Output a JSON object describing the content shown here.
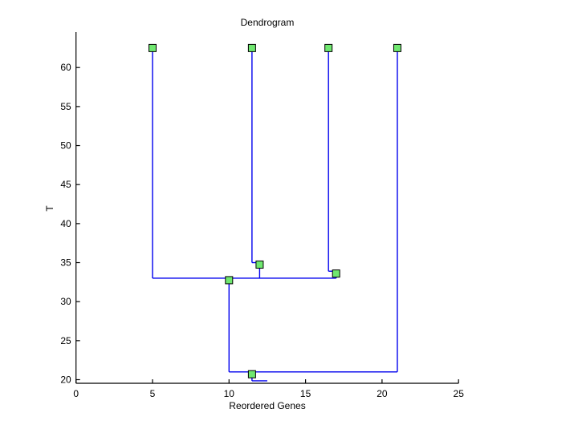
{
  "figure": {
    "title": "Dendrogram",
    "xlabel": "Reordered Genes",
    "ylabel": "T"
  },
  "colors": {
    "link_line": "#0000EE",
    "marker_fill": "#70E870",
    "marker_edge": "#000000",
    "axis": "#000000",
    "text": "#000000",
    "background": "#FFFFFF"
  },
  "chart_data": {
    "type": "dendrogram",
    "title": "Dendrogram",
    "xlabel": "Reordered Genes",
    "ylabel": "T",
    "xlim": [
      0,
      25
    ],
    "ylim": [
      19.4,
      64.6
    ],
    "x_ticks": [
      0,
      5,
      10,
      15,
      20,
      25
    ],
    "y_ticks": [
      20,
      25,
      30,
      35,
      40,
      45,
      50,
      55,
      60
    ],
    "grid": false,
    "legend": false,
    "leaf_x_positions": [
      5,
      11.5,
      16.5,
      21
    ],
    "leaf_top_value": 62.5,
    "merge_heights": [
      35,
      33.9,
      33,
      21,
      19.85
    ],
    "segments": [
      {
        "x1": 5,
        "y1": 62.5,
        "x2": 5,
        "y2": 33
      },
      {
        "x1": 11.5,
        "y1": 62.5,
        "x2": 11.5,
        "y2": 35
      },
      {
        "x1": 11.5,
        "y1": 35,
        "x2": 12,
        "y2": 35
      },
      {
        "x1": 12,
        "y1": 35,
        "x2": 12,
        "y2": 33
      },
      {
        "x1": 16.5,
        "y1": 62.5,
        "x2": 16.5,
        "y2": 33.9
      },
      {
        "x1": 16.5,
        "y1": 33.9,
        "x2": 17,
        "y2": 33.9
      },
      {
        "x1": 17,
        "y1": 33.9,
        "x2": 17,
        "y2": 33
      },
      {
        "x1": 5,
        "y1": 33,
        "x2": 17,
        "y2": 33
      },
      {
        "x1": 10,
        "y1": 33,
        "x2": 10,
        "y2": 21
      },
      {
        "x1": 21,
        "y1": 62.5,
        "x2": 21,
        "y2": 21
      },
      {
        "x1": 10,
        "y1": 21,
        "x2": 21,
        "y2": 21
      },
      {
        "x1": 11.5,
        "y1": 20.7,
        "x2": 11.5,
        "y2": 19.85
      },
      {
        "x1": 11.5,
        "y1": 19.85,
        "x2": 12.5,
        "y2": 19.85
      }
    ],
    "node_markers": [
      {
        "x": 5,
        "y": 62.5
      },
      {
        "x": 11.5,
        "y": 62.5
      },
      {
        "x": 16.5,
        "y": 62.5
      },
      {
        "x": 21,
        "y": 62.5
      },
      {
        "x": 12,
        "y": 34.75
      },
      {
        "x": 17,
        "y": 33.6
      },
      {
        "x": 10,
        "y": 32.75
      },
      {
        "x": 11.5,
        "y": 20.7
      }
    ]
  }
}
